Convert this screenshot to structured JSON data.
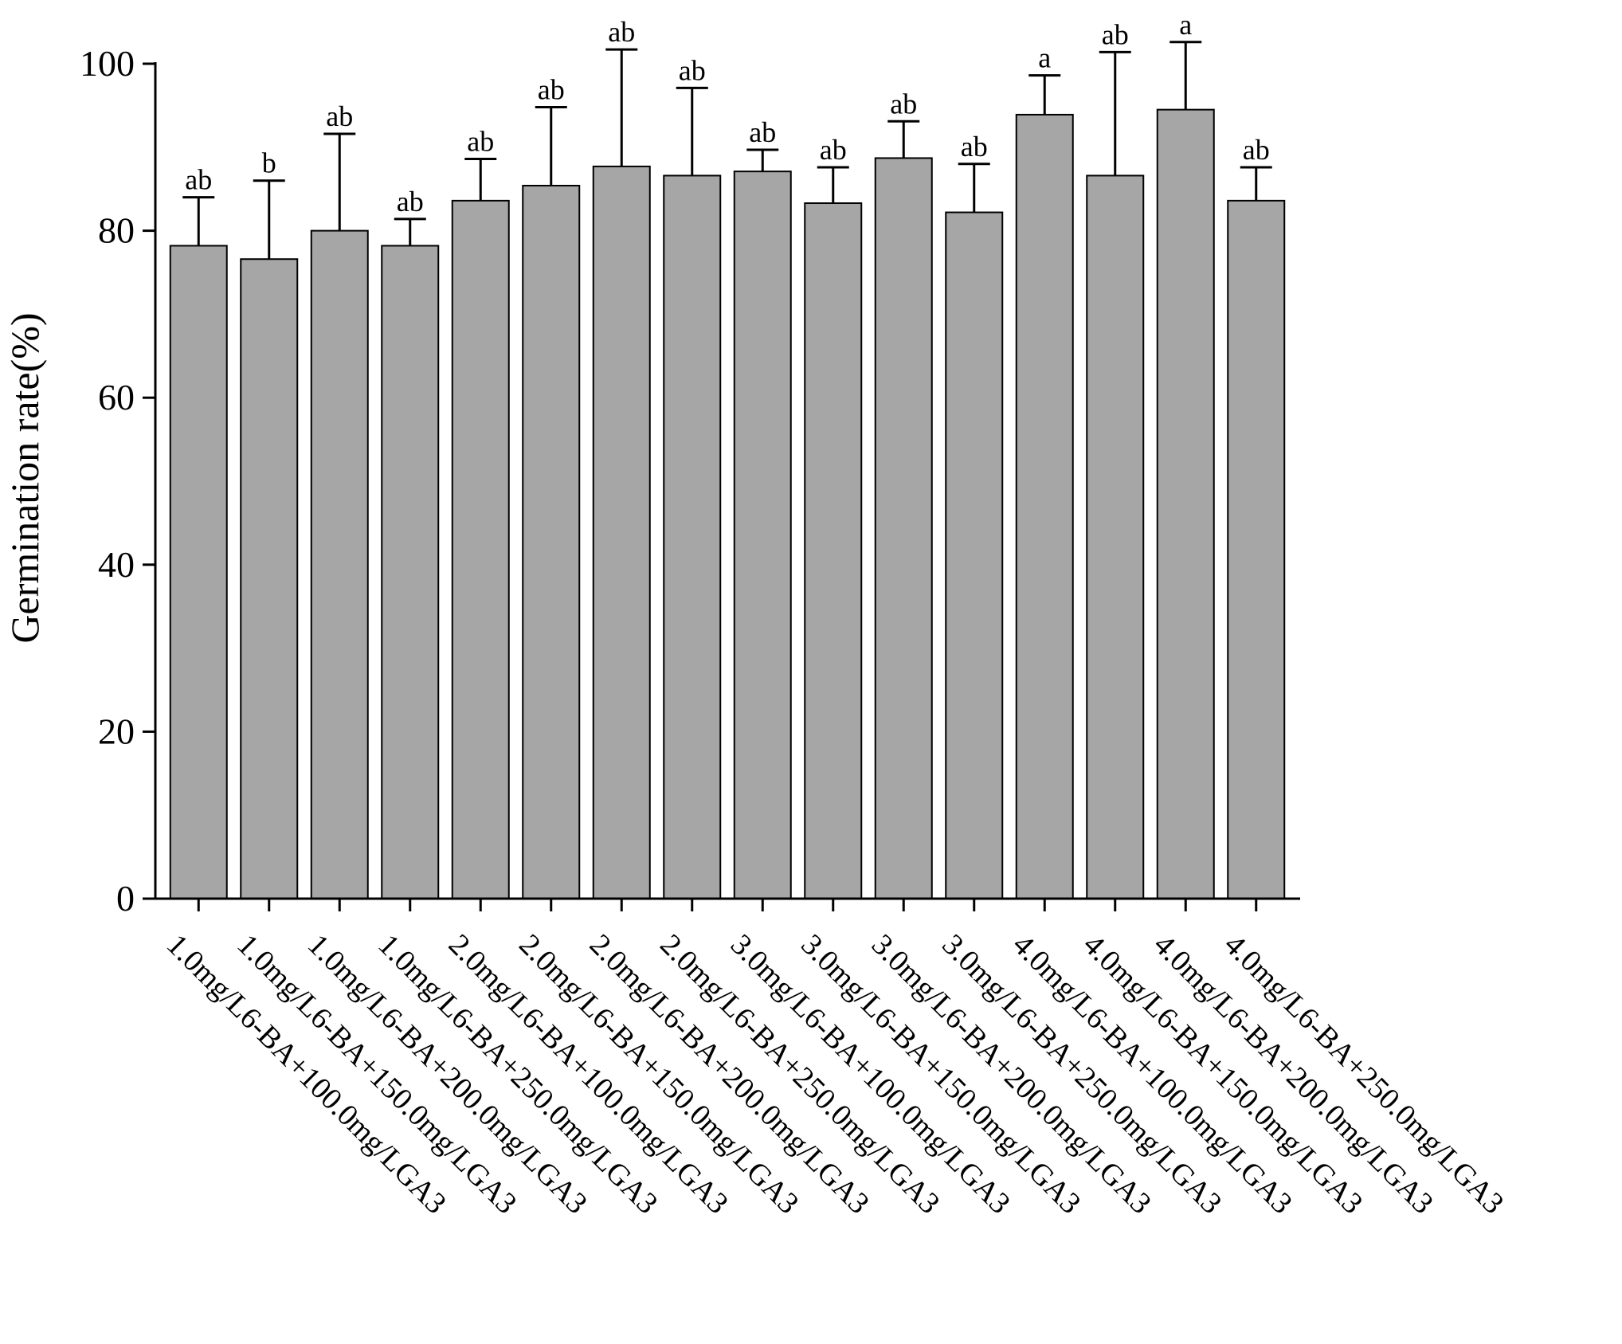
{
  "chart_data": {
    "type": "bar",
    "title": "",
    "xlabel": "",
    "ylabel": "Germination rate(%)",
    "ylim": [
      0,
      100
    ],
    "yticks": [
      0,
      20,
      40,
      60,
      80,
      100
    ],
    "grid": false,
    "legend": "none",
    "colors": {
      "bar_fill": "#a6a6a6",
      "bar_stroke": "#000000",
      "axis": "#000000"
    },
    "categories": [
      "1.0mg/L6-BA+100.0mg/LGA3",
      "1.0mg/L6-BA+150.0mg/LGA3",
      "1.0mg/L6-BA+200.0mg/LGA3",
      "1.0mg/L6-BA+250.0mg/LGA3",
      "2.0mg/L6-BA+100.0mg/LGA3",
      "2.0mg/L6-BA+150.0mg/LGA3",
      "2.0mg/L6-BA+200.0mg/LGA3",
      "2.0mg/L6-BA+250.0mg/LGA3",
      "3.0mg/L6-BA+100.0mg/LGA3",
      "3.0mg/L6-BA+150.0mg/LGA3",
      "3.0mg/L6-BA+200.0mg/LGA3",
      "3.0mg/L6-BA+250.0mg/LGA3",
      "4.0mg/L6-BA+100.0mg/LGA3",
      "4.0mg/L6-BA+150.0mg/LGA3",
      "4.0mg/L6-BA+200.0mg/LGA3",
      "4.0mg/L6-BA+250.0mg/LGA3"
    ],
    "values": [
      78.2,
      76.6,
      80.0,
      78.2,
      83.6,
      85.4,
      87.7,
      86.6,
      87.1,
      83.3,
      88.7,
      82.2,
      93.9,
      86.6,
      94.5,
      83.6
    ],
    "error_upper": [
      84.0,
      86.0,
      91.6,
      81.4,
      88.6,
      94.8,
      101.7,
      97.1,
      89.7,
      87.6,
      93.1,
      88.0,
      98.6,
      101.4,
      102.6,
      87.6
    ],
    "significance": [
      "ab",
      "b",
      "ab",
      "ab",
      "ab",
      "ab",
      "ab",
      "ab",
      "ab",
      "ab",
      "ab",
      "ab",
      "a",
      "ab",
      "a",
      "ab"
    ]
  }
}
